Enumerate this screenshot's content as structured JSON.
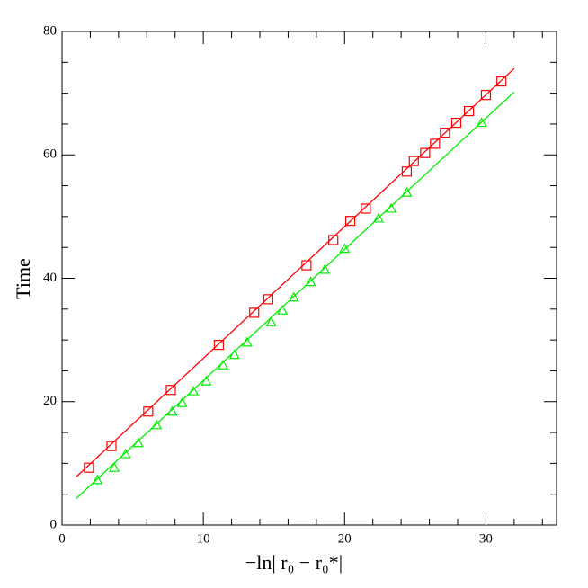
{
  "chart_data": {
    "type": "scatter",
    "xlabel": "−ln| r₀ − r₀*|",
    "ylabel": "Time",
    "xlim": [
      0,
      35
    ],
    "ylim": [
      0,
      80
    ],
    "xticks": [
      0,
      10,
      20,
      30
    ],
    "yticks": [
      0,
      20,
      40,
      60,
      80
    ],
    "xminorticks": [
      2,
      4,
      6,
      8,
      12,
      14,
      16,
      18,
      22,
      24,
      26,
      28,
      32,
      34
    ],
    "yminorticks": [
      5,
      10,
      15,
      25,
      30,
      35,
      45,
      50,
      55,
      65,
      70,
      75
    ],
    "series": [
      {
        "color": "#ff0000",
        "marker": "square",
        "x": [
          1.9,
          3.5,
          6.1,
          7.7,
          11.1,
          13.6,
          14.6,
          17.3,
          19.2,
          20.4,
          21.5,
          24.4,
          24.9,
          25.7,
          26.4,
          27.1,
          27.9,
          28.8,
          30.0,
          31.1
        ],
        "values": [
          9.3,
          12.8,
          18.4,
          21.9,
          29.2,
          34.4,
          36.6,
          42.1,
          46.2,
          49.3,
          51.3,
          57.3,
          59.0,
          60.3,
          61.8,
          63.6,
          65.2,
          67.1,
          69.7,
          71.9
        ]
      },
      {
        "color": "#00ee00",
        "marker": "triangle",
        "x": [
          2.5,
          3.7,
          4.5,
          5.4,
          6.7,
          7.8,
          8.5,
          9.3,
          10.2,
          11.4,
          12.2,
          13.1,
          14.8,
          15.6,
          16.4,
          17.6,
          18.6,
          20.0,
          22.4,
          23.3,
          24.4,
          29.7
        ],
        "values": [
          7.3,
          9.3,
          11.5,
          13.3,
          16.2,
          18.4,
          19.8,
          21.7,
          23.3,
          25.9,
          27.6,
          29.6,
          32.9,
          34.8,
          36.9,
          39.4,
          41.4,
          44.8,
          49.7,
          51.3,
          53.9,
          65.2
        ]
      },
      {
        "color": "#ff0000",
        "marker": "none",
        "x": [
          1,
          32
        ],
        "values": [
          7.8,
          74.0
        ]
      },
      {
        "color": "#00ee00",
        "marker": "none",
        "x": [
          1,
          32
        ],
        "values": [
          4.3,
          70.2
        ]
      }
    ]
  }
}
